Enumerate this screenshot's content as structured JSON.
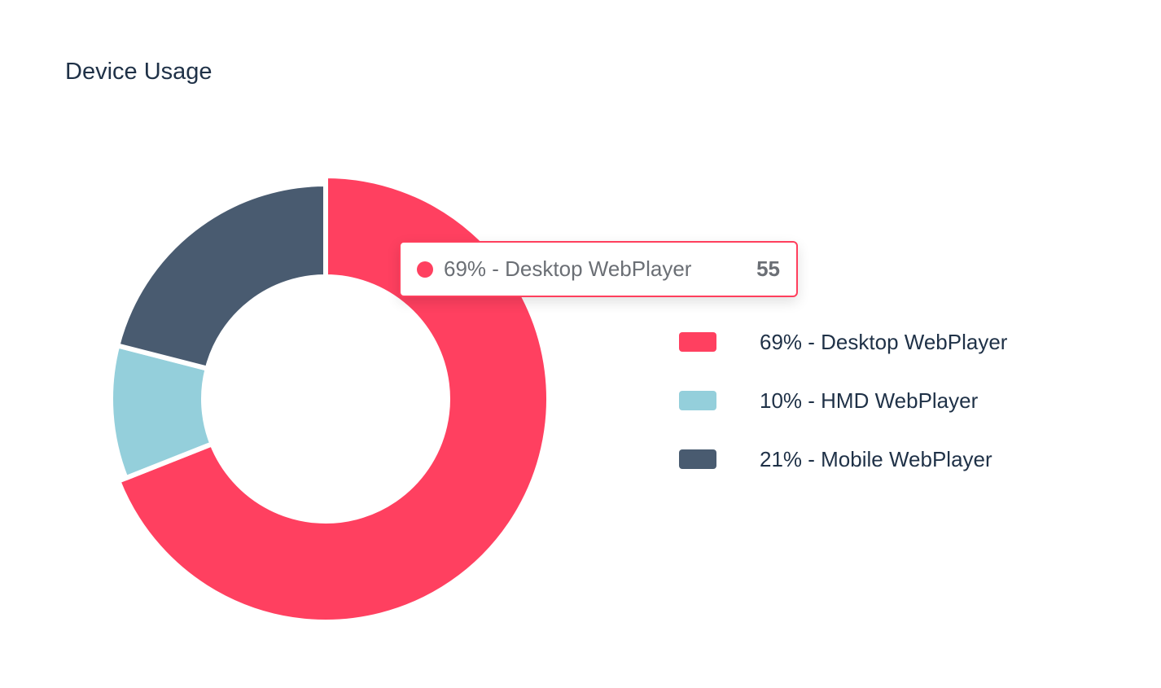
{
  "header": {
    "title": "Device Usage"
  },
  "chart_data": {
    "type": "pie",
    "variant": "donut",
    "categories": [
      "Desktop WebPlayer",
      "HMD WebPlayer",
      "Mobile WebPlayer"
    ],
    "values": [
      69,
      10,
      21
    ],
    "unit": "%",
    "colors": [
      "#ff4060",
      "#94cfdb",
      "#495b70"
    ],
    "legend_position": "right",
    "legend": [
      "69% - Desktop WebPlayer",
      "10% - HMD WebPlayer",
      "21% - Mobile WebPlayer"
    ]
  },
  "tooltip": {
    "label": "69% - Desktop WebPlayer",
    "value": "55",
    "color": "#ff4060"
  }
}
